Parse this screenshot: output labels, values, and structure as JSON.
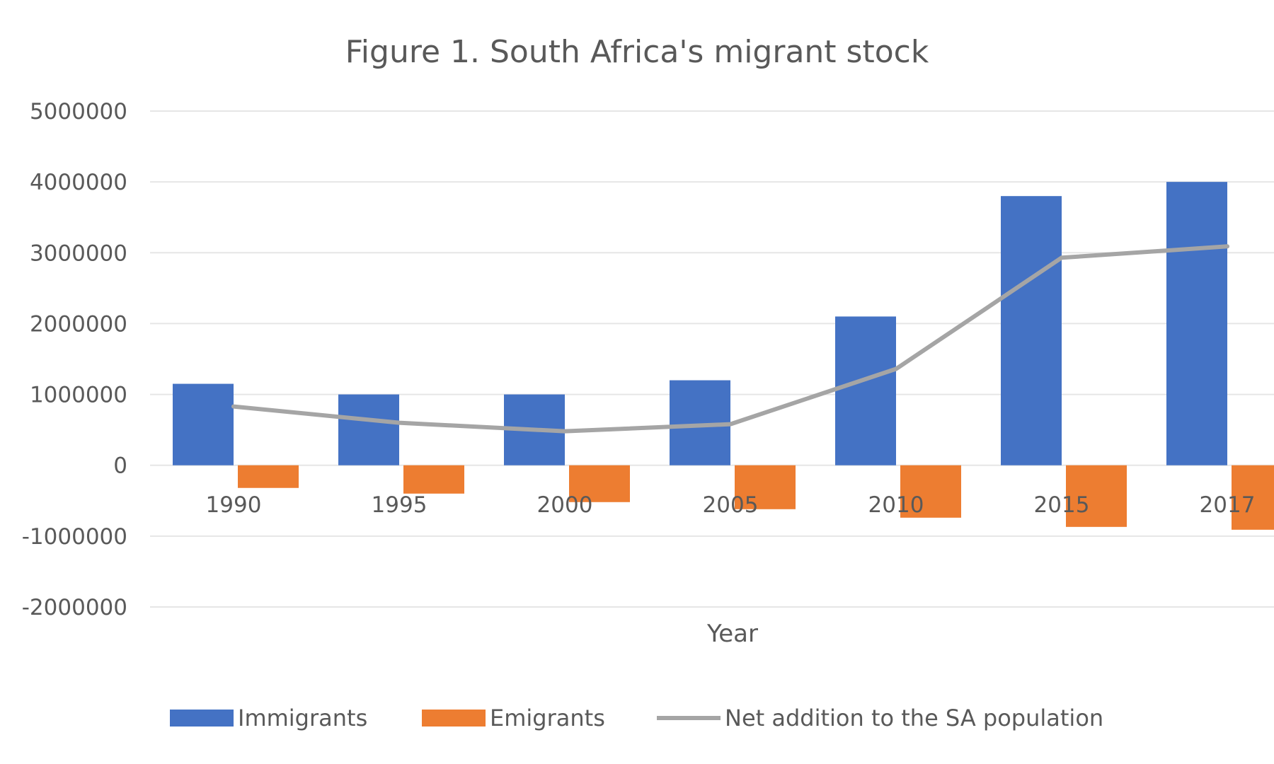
{
  "chart_data": {
    "type": "bar",
    "title": "Figure 1. South Africa's migrant stock",
    "xlabel": "Year",
    "ylabel": "",
    "categories": [
      "1990",
      "1995",
      "2000",
      "2005",
      "2010",
      "2015",
      "2017"
    ],
    "yticks": [
      "5000000",
      "4000000",
      "3000000",
      "2000000",
      "1000000",
      "0",
      "-1000000",
      "-2000000"
    ],
    "ylim": [
      -2000000,
      5000000
    ],
    "grid": true,
    "legend_position": "bottom",
    "series": [
      {
        "name": "Immigrants",
        "type": "bar",
        "color": "#4472c4",
        "values": [
          1150000,
          1000000,
          1000000,
          1200000,
          2100000,
          3800000,
          4000000
        ]
      },
      {
        "name": "Emigrants",
        "type": "bar",
        "color": "#ed7d31",
        "values": [
          -320000,
          -400000,
          -520000,
          -620000,
          -740000,
          -870000,
          -910000
        ]
      },
      {
        "name": "Net addition to the SA population",
        "type": "line",
        "color": "#a5a5a5",
        "values": [
          830000,
          600000,
          480000,
          580000,
          1360000,
          2930000,
          3090000
        ]
      }
    ]
  }
}
